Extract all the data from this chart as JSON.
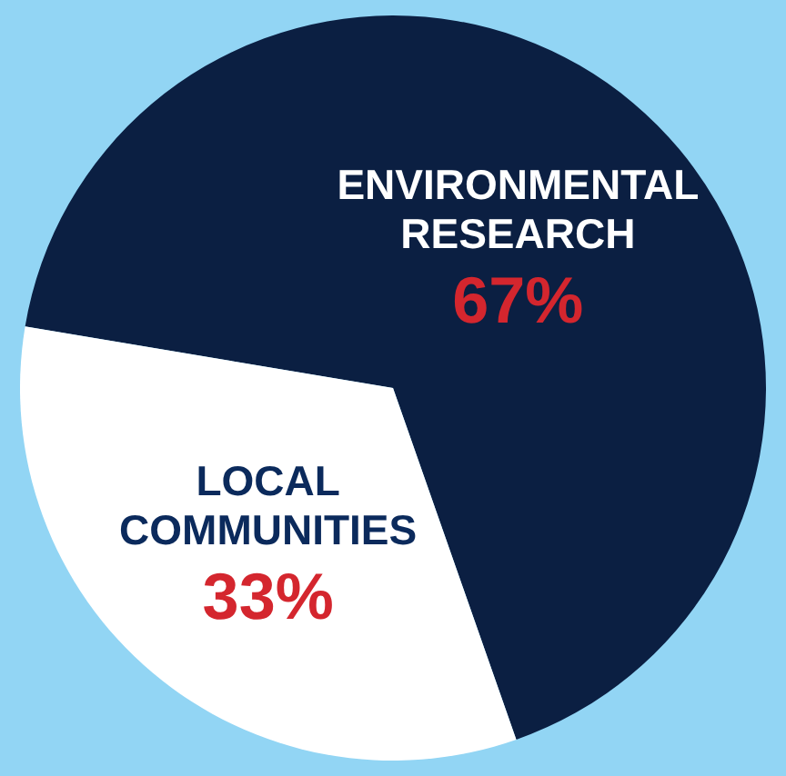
{
  "chart_data": {
    "type": "pie",
    "categories": [
      "ENVIRONMENTAL RESEARCH",
      "LOCAL COMMUNITIES"
    ],
    "values": [
      67,
      33
    ],
    "colors": [
      "#0b1f42",
      "#ffffff"
    ],
    "value_labels": [
      "67%",
      "33%"
    ]
  }
}
